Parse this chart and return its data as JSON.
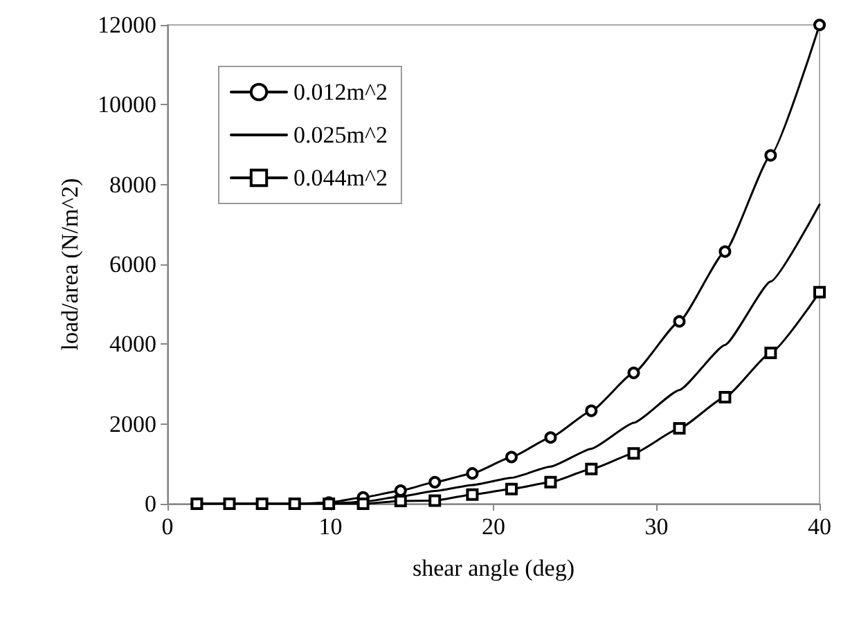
{
  "chart_data": {
    "type": "line",
    "xlabel": "shear angle (deg)",
    "ylabel": "load/area (N/m^2)",
    "x": [
      1.8,
      3.8,
      5.8,
      7.8,
      9.9,
      12.0,
      14.3,
      16.4,
      18.7,
      21.1,
      23.5,
      26.0,
      28.6,
      31.4,
      34.2,
      37.0,
      40
    ],
    "series": [
      {
        "name": "0.012m^2",
        "color": "#000000",
        "marker": "circle",
        "values": [
          0,
          0,
          0,
          0,
          30,
          160,
          330,
          540,
          760,
          1170,
          1660,
          2330,
          3280,
          4570,
          6320,
          8730,
          12000
        ]
      },
      {
        "name": "0.025m^2",
        "color": "#000000",
        "marker": "none",
        "values": [
          0,
          0,
          0,
          0,
          0,
          50,
          180,
          320,
          470,
          650,
          930,
          1380,
          2030,
          2850,
          3980,
          5570,
          7500
        ]
      },
      {
        "name": "0.044m^2",
        "color": "#000000",
        "marker": "square",
        "values": [
          0,
          0,
          0,
          0,
          0,
          0,
          70,
          80,
          230,
          370,
          540,
          870,
          1260,
          1890,
          2670,
          3780,
          5300
        ]
      }
    ],
    "xlim": [
      0,
      40
    ],
    "xticks": [
      0,
      10,
      20,
      30,
      40
    ],
    "ylim": [
      0,
      12000
    ],
    "yticks": [
      0,
      2000,
      4000,
      6000,
      8000,
      10000,
      12000
    ],
    "grid": false,
    "legend": "top left",
    "line_style": "solid"
  }
}
